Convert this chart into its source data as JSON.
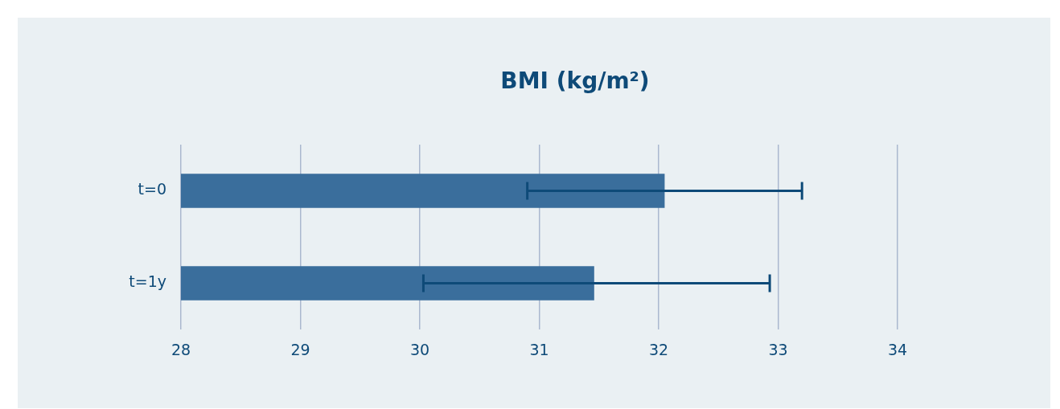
{
  "chart_data": {
    "type": "bar",
    "title": "BMI (kg/m²)",
    "orientation": "horizontal",
    "categories": [
      "t=0",
      "t=1y"
    ],
    "values": [
      32.05,
      31.46
    ],
    "errors": [
      [
        30.9,
        33.2
      ],
      [
        30.03,
        32.93
      ]
    ],
    "color": "#3a6e9c",
    "xlim": [
      28,
      34
    ],
    "xticks": [
      28,
      29,
      30,
      31,
      32,
      33,
      34
    ],
    "grid": "x",
    "legend": false
  }
}
